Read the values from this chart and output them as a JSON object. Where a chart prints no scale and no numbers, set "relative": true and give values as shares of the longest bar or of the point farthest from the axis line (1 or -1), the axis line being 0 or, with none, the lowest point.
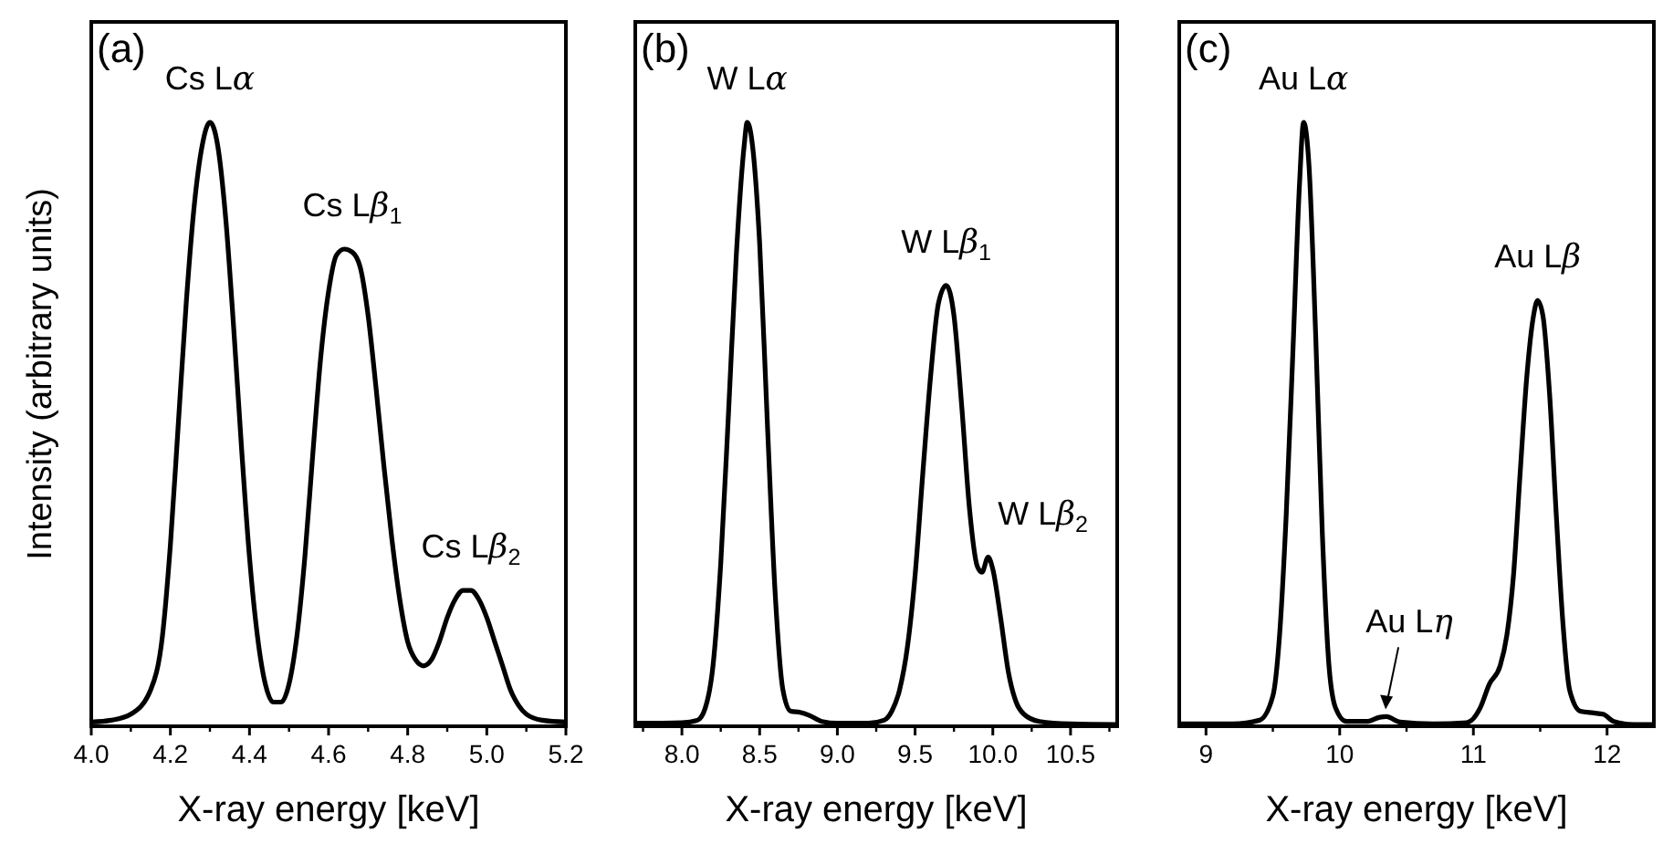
{
  "chart_data": [
    {
      "type": "line",
      "title": "(a)",
      "xlabel": "X-ray energy [keV]",
      "ylabel": "Intensity (arbitrary units)",
      "relative": true,
      "xlim": [
        4.0,
        5.2
      ],
      "xticks": [
        {
          "value": 4.0,
          "label": "4.0"
        },
        4.2,
        4.4,
        4.6,
        4.8,
        {
          "value": 5.0,
          "label": "5.0"
        },
        5.2
      ],
      "tick_labels": "x",
      "series": [
        {
          "color": "#000000",
          "x": [
            4.0,
            4.05,
            4.1,
            4.15,
            4.18,
            4.2,
            4.22,
            4.24,
            4.26,
            4.28,
            4.3,
            4.32,
            4.34,
            4.36,
            4.38,
            4.4,
            4.42,
            4.44,
            4.46,
            4.48,
            4.5,
            4.52,
            4.54,
            4.56,
            4.58,
            4.6,
            4.62,
            4.64,
            4.66,
            4.68,
            4.7,
            4.72,
            4.74,
            4.76,
            4.78,
            4.8,
            4.82,
            4.84,
            4.86,
            4.88,
            4.9,
            4.92,
            4.94,
            4.96,
            4.98,
            5.0,
            5.02,
            5.04,
            5.06,
            5.08,
            5.1,
            5.14,
            5.2
          ],
          "values": [
            0.007,
            0.01,
            0.02,
            0.06,
            0.15,
            0.3,
            0.5,
            0.7,
            0.86,
            0.96,
            1.0,
            0.96,
            0.84,
            0.66,
            0.46,
            0.28,
            0.15,
            0.07,
            0.04,
            0.04,
            0.07,
            0.15,
            0.28,
            0.45,
            0.61,
            0.72,
            0.78,
            0.79,
            0.785,
            0.76,
            0.68,
            0.56,
            0.43,
            0.31,
            0.21,
            0.14,
            0.11,
            0.1,
            0.11,
            0.14,
            0.18,
            0.21,
            0.225,
            0.225,
            0.21,
            0.18,
            0.14,
            0.1,
            0.06,
            0.035,
            0.02,
            0.01,
            0.007
          ]
        }
      ],
      "annotations": [
        {
          "text": "Cs Lα",
          "x": 4.3,
          "y": 1.0
        },
        {
          "text": "Cs Lβ$_{1}$",
          "x": 4.66,
          "y": 0.79
        },
        {
          "text": "Cs Lβ$_{2}$",
          "x": 4.96,
          "y": 0.225
        }
      ]
    },
    {
      "type": "line",
      "title": "(b)",
      "xlabel": "X-ray energy [keV]",
      "relative": true,
      "xlim": [
        7.7,
        10.8
      ],
      "xticks": [
        {
          "value": 8,
          "label": "8.0"
        },
        8.5,
        {
          "value": 9,
          "label": "9.0"
        },
        9.5,
        {
          "value": 10,
          "label": "10.0"
        },
        10.5
      ],
      "tick_labels": "x",
      "series": [
        {
          "color": "#000000",
          "x": [
            7.7,
            8.0,
            8.1,
            8.15,
            8.2,
            8.25,
            8.3,
            8.35,
            8.4,
            8.42,
            8.45,
            8.5,
            8.55,
            8.6,
            8.65,
            8.7,
            8.76,
            8.82,
            8.9,
            9.0,
            9.2,
            9.3,
            9.35,
            9.4,
            9.45,
            9.5,
            9.55,
            9.6,
            9.65,
            9.7,
            9.75,
            9.8,
            9.85,
            9.9,
            9.93,
            9.97,
            10.0,
            10.05,
            10.1,
            10.15,
            10.2,
            10.3,
            10.5,
            10.8
          ],
          "values": [
            0.005,
            0.006,
            0.01,
            0.03,
            0.1,
            0.27,
            0.52,
            0.78,
            0.96,
            1.0,
            0.97,
            0.8,
            0.5,
            0.22,
            0.06,
            0.025,
            0.023,
            0.018,
            0.008,
            0.005,
            0.005,
            0.01,
            0.025,
            0.06,
            0.13,
            0.25,
            0.42,
            0.58,
            0.7,
            0.73,
            0.68,
            0.53,
            0.36,
            0.265,
            0.255,
            0.28,
            0.26,
            0.18,
            0.09,
            0.04,
            0.02,
            0.008,
            0.004,
            0.003
          ]
        }
      ],
      "annotations": [
        {
          "text": "W Lα",
          "x": 8.42,
          "y": 1.0
        },
        {
          "text": "W Lβ$_{1}$",
          "x": 9.7,
          "y": 0.73
        },
        {
          "text": "W Lβ$_{2}$",
          "x": 9.97,
          "y": 0.28
        }
      ]
    },
    {
      "type": "line",
      "title": "(c)",
      "xlabel": "X-ray energy [keV]",
      "relative": true,
      "xlim": [
        8.8,
        12.35
      ],
      "xticks": [
        9,
        10,
        11,
        12
      ],
      "tick_labels": "x",
      "series": [
        {
          "color": "#000000",
          "x": [
            8.8,
            9.2,
            9.4,
            9.5,
            9.55,
            9.6,
            9.65,
            9.7,
            9.73,
            9.77,
            9.82,
            9.87,
            9.92,
            9.97,
            10.05,
            10.2,
            10.3,
            10.35,
            10.45,
            10.7,
            10.95,
            11.05,
            11.12,
            11.2,
            11.25,
            11.3,
            11.35,
            11.4,
            11.45,
            11.48,
            11.52,
            11.57,
            11.62,
            11.67,
            11.72,
            11.8,
            11.9,
            11.97,
            12.05,
            12.2,
            12.35
          ],
          "values": [
            0.004,
            0.004,
            0.01,
            0.05,
            0.15,
            0.35,
            0.62,
            0.9,
            1.0,
            0.93,
            0.65,
            0.32,
            0.1,
            0.03,
            0.008,
            0.008,
            0.015,
            0.016,
            0.007,
            0.004,
            0.006,
            0.03,
            0.07,
            0.1,
            0.15,
            0.25,
            0.42,
            0.58,
            0.68,
            0.705,
            0.68,
            0.55,
            0.35,
            0.17,
            0.06,
            0.025,
            0.022,
            0.02,
            0.008,
            0.003,
            0.003
          ]
        }
      ],
      "annotations": [
        {
          "text": "Au Lα",
          "x": 9.73,
          "y": 1.0
        },
        {
          "text": "Au Lη",
          "x": 10.33,
          "y": 0.016
        },
        {
          "text": "Au Lβ",
          "x": 11.48,
          "y": 0.705
        }
      ]
    }
  ]
}
